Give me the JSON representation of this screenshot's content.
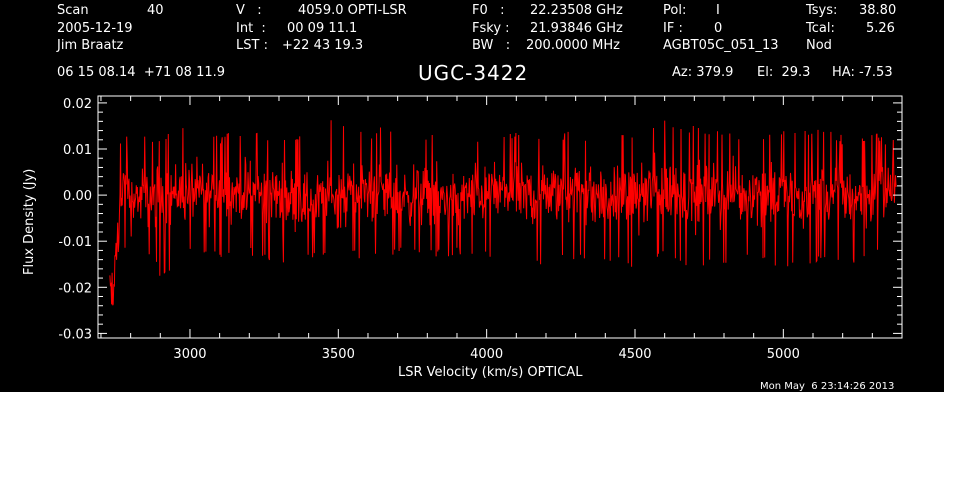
{
  "header": {
    "col1": [
      {
        "label": "Scan",
        "value": "40"
      },
      {
        "label": "2005-12-19",
        "value": ""
      },
      {
        "label": "Jim Braatz",
        "value": ""
      }
    ],
    "col2": [
      {
        "label": "V   :",
        "value": "4059.0 OPTI-LSR"
      },
      {
        "label": "Int  :",
        "value": "00 09 11.1"
      },
      {
        "label": "LST :",
        "value": "+22 43 19.3"
      }
    ],
    "col3": [
      {
        "label": "F0   :",
        "value": "22.23508 GHz"
      },
      {
        "label": "Fsky :",
        "value": "21.93846 GHz"
      },
      {
        "label": "BW   :",
        "value": "200.0000 MHz"
      }
    ],
    "col4": [
      {
        "label": "Pol:",
        "value": "I"
      },
      {
        "label": "IF :",
        "value": "0"
      },
      {
        "label": "AGBT05C_051_13",
        "value": ""
      }
    ],
    "col5": [
      {
        "label": "Tsys:",
        "value": "38.80"
      },
      {
        "label": "Tcal:",
        "value": "5.26"
      },
      {
        "label": "Nod",
        "value": ""
      }
    ],
    "coords": "06 15 08.14  +71 08 11.9",
    "source": "UGC-3422",
    "az": "Az: 379.9",
    "el": "El:  29.3",
    "ha": "HA: -7.53"
  },
  "footer": {
    "timestamp": "Mon May  6 23:14:26 2013"
  },
  "chart_data": {
    "type": "line",
    "xlabel": "LSR Velocity (km/s) OPTICAL",
    "ylabel": "Flux Density (Jy)",
    "xlim": [
      2690,
      5400
    ],
    "ylim": [
      -0.031,
      0.0215
    ],
    "x_ticks": [
      3000,
      3500,
      4000,
      4500,
      5000
    ],
    "x_tick_labels": [
      "3000",
      "3500",
      "4000",
      "4500",
      "5000"
    ],
    "y_ticks": [
      0.02,
      0.01,
      0.0,
      -0.01,
      -0.02,
      -0.03
    ],
    "y_tick_labels": [
      "0.02",
      "0.01",
      "0.00",
      "-0.01",
      "-0.02",
      "-0.03"
    ],
    "grid": false,
    "colors": {
      "background": "#000000",
      "axes": "#ffffff",
      "series": "#ff0000"
    },
    "series": [
      {
        "x_range": [
          2730,
          5380
        ],
        "typical_range": [
          -0.01,
          0.012
        ],
        "x": [
          2730,
          2740,
          2750,
          2760,
          2780,
          2800,
          2850,
          2900,
          3000,
          3100,
          3200,
          3300,
          3400,
          3500,
          3600,
          3700,
          3800,
          3900,
          4000,
          4100,
          4200,
          4300,
          4400,
          4500,
          4600,
          4700,
          4800,
          4900,
          5000,
          5100,
          5200,
          5300,
          5380
        ],
        "y": [
          -0.02,
          -0.025,
          -0.012,
          -0.005,
          0.002,
          0.0,
          -0.001,
          0.0,
          0.001,
          0.0,
          0.001,
          0.0,
          -0.001,
          0.0,
          0.001,
          0.0,
          0.0,
          -0.001,
          0.001,
          0.0,
          0.0,
          0.001,
          -0.001,
          0.0,
          0.001,
          0.0,
          0.0,
          0.001,
          0.0,
          -0.001,
          0.0,
          0.0,
          0.002
        ],
        "envelope_max": [
          0.005,
          0.008,
          0.01,
          0.012,
          0.013,
          0.014,
          0.014,
          0.013,
          0.016,
          0.013,
          0.015,
          0.013,
          0.014,
          0.017,
          0.014,
          0.016,
          0.013,
          0.014,
          0.013,
          0.014,
          0.013,
          0.014,
          0.013,
          0.014,
          0.017,
          0.015,
          0.014,
          0.013,
          0.014,
          0.015,
          0.013,
          0.014,
          0.012
        ],
        "envelope_min": [
          -0.022,
          -0.025,
          -0.015,
          -0.014,
          -0.012,
          -0.01,
          -0.012,
          -0.018,
          -0.013,
          -0.014,
          -0.013,
          -0.015,
          -0.014,
          -0.013,
          -0.014,
          -0.013,
          -0.014,
          -0.013,
          -0.014,
          -0.015,
          -0.016,
          -0.014,
          -0.015,
          -0.016,
          -0.014,
          -0.016,
          -0.015,
          -0.014,
          -0.016,
          -0.015,
          -0.016,
          -0.014,
          -0.013
        ]
      }
    ]
  }
}
